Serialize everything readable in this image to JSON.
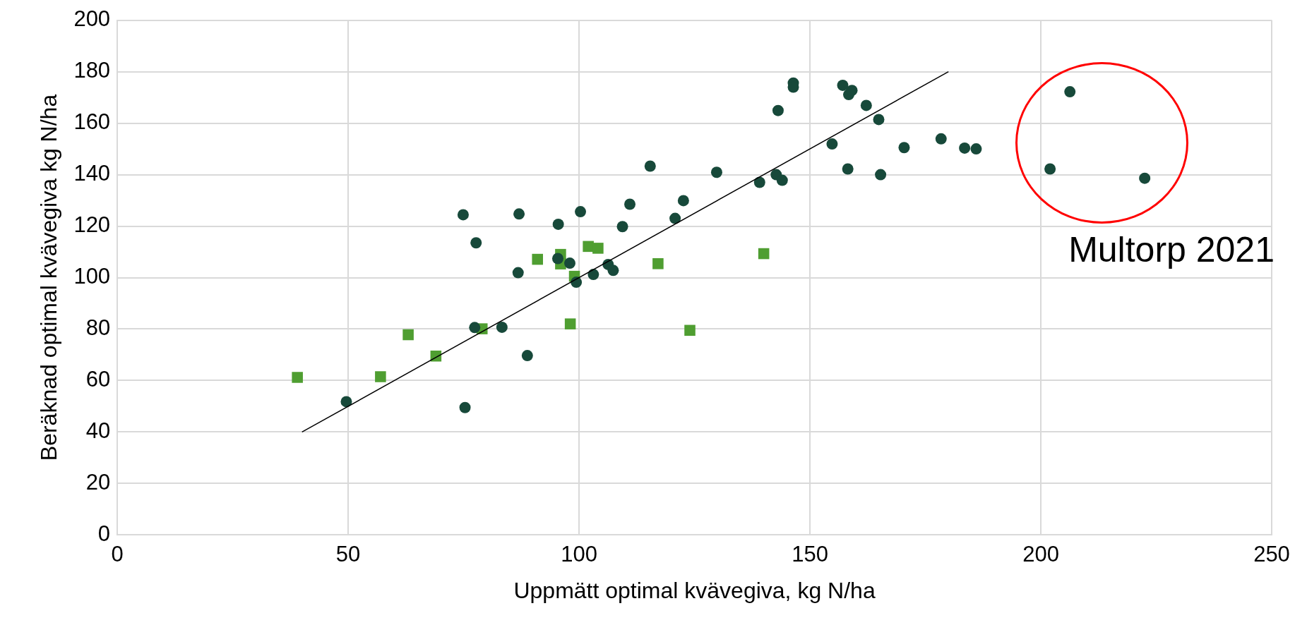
{
  "chart_data": {
    "type": "scatter",
    "xlabel": "Uppmätt optimal kvävegiva, kg N/ha",
    "ylabel": "Beräknad optimal kvävegiva kg N/ha",
    "xlim": [
      0,
      250
    ],
    "xticks": [
      0,
      50,
      100,
      150,
      200,
      250
    ],
    "ylim": [
      0,
      200
    ],
    "yticks": [
      0,
      20,
      40,
      60,
      80,
      100,
      120,
      140,
      160,
      180,
      200
    ],
    "grid": true,
    "legend": false,
    "annotations": [
      "Multorp 2021"
    ],
    "series": [
      {
        "type": "scatter",
        "marker": "circle",
        "color": "#17493a",
        "x": [
          49.6,
          75.3,
          74.9,
          87.0,
          100.3,
          95.5,
          109.4,
          111.0,
          77.7,
          95.4,
          98.0,
          106.3,
          107.4,
          86.8,
          103.1,
          99.4,
          77.4,
          83.3,
          88.8,
          115.4,
          122.6,
          120.8,
          129.8,
          139.1,
          142.7,
          144.0,
          143.1,
          146.4,
          146.4,
          154.8,
          157.1,
          158.4,
          159.1,
          162.2,
          164.9,
          158.2,
          165.3,
          170.4,
          178.4,
          183.5,
          186.0,
          206.3,
          202.0,
          222.5
        ],
        "values": [
          51.8,
          49.5,
          124.4,
          124.7,
          125.6,
          120.7,
          119.8,
          128.5,
          113.5,
          107.4,
          105.6,
          105.1,
          102.8,
          101.9,
          101.2,
          98.2,
          80.6,
          80.7,
          69.7,
          143.3,
          129.9,
          123.0,
          140.9,
          137.0,
          140.0,
          137.8,
          164.9,
          175.6,
          174.0,
          151.9,
          174.7,
          171.1,
          172.7,
          166.9,
          161.4,
          142.2,
          140.0,
          150.5,
          153.9,
          150.3,
          150.0,
          172.2,
          142.2,
          138.6
        ]
      },
      {
        "type": "scatter",
        "marker": "square",
        "color": "#4f9e31",
        "x": [
          39.0,
          57.0,
          63.0,
          69.0,
          79.0,
          91.0,
          96.0,
          96.0,
          102.0,
          104.1,
          99.0,
          98.1,
          117.1,
          140.0,
          124.0
        ],
        "values": [
          61.2,
          61.5,
          77.8,
          69.5,
          80.1,
          107.1,
          109.0,
          105.3,
          112.1,
          111.4,
          100.5,
          82.0,
          105.4,
          109.3,
          79.5
        ]
      },
      {
        "type": "line",
        "marker": "none",
        "line_style": "solid",
        "color": "#000000",
        "x": [
          40,
          180
        ],
        "values": [
          40,
          180
        ]
      }
    ]
  }
}
